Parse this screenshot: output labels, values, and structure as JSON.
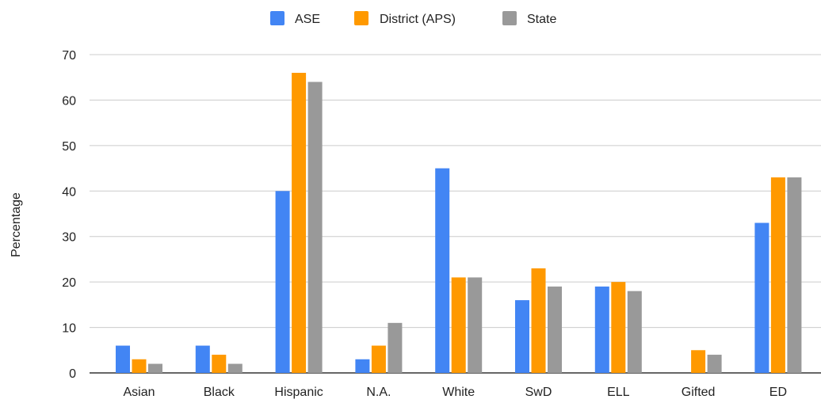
{
  "chart_data": {
    "type": "bar",
    "title": "",
    "xlabel": "",
    "ylabel": "Percentage",
    "ylim": [
      0,
      70
    ],
    "yticks": [
      0,
      10,
      20,
      30,
      40,
      50,
      60,
      70
    ],
    "grid": true,
    "legend_position": "top-center",
    "categories": [
      "Asian",
      "Black",
      "Hispanic",
      "N.A.",
      "White",
      "SwD",
      "ELL",
      "Gifted",
      "ED"
    ],
    "series": [
      {
        "name": "ASE",
        "color": "#4285f4",
        "values": [
          6,
          6,
          40,
          3,
          45,
          16,
          19,
          0,
          33
        ]
      },
      {
        "name": "District (APS)",
        "color": "#ff9900",
        "values": [
          3,
          4,
          66,
          6,
          21,
          23,
          20,
          5,
          43
        ]
      },
      {
        "name": "State",
        "color": "#999999",
        "values": [
          2,
          2,
          64,
          11,
          21,
          19,
          18,
          4,
          43
        ]
      }
    ]
  }
}
